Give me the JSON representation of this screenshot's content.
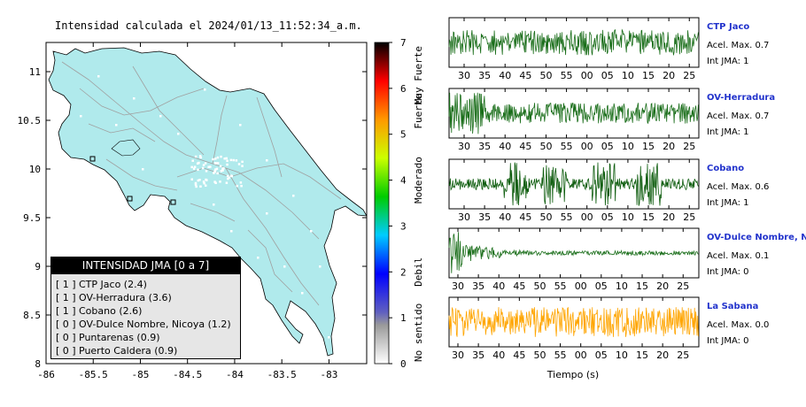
{
  "map": {
    "title": "Intensidad calculada el 2024/01/13_11:52:34_a.m.",
    "x_ticks": [
      "-86",
      "-85.5",
      "-85",
      "-84.5",
      "-84",
      "-83.5",
      "-83"
    ],
    "y_ticks": [
      "11",
      "10.5",
      "10",
      "9.5",
      "9",
      "8.5",
      "8"
    ],
    "land_color": "#b0eaec",
    "legend": {
      "title": "INTENSIDAD JMA [0 a 7]",
      "items": [
        {
          "jma": "[ 1 ]",
          "label": "CTP Jaco (2.4)"
        },
        {
          "jma": "[ 1 ]",
          "label": "OV-Herradura (3.6)"
        },
        {
          "jma": "[ 1 ]",
          "label": "Cobano (2.6)"
        },
        {
          "jma": "[ 0 ]",
          "label": "OV-Dulce Nombre, Nicoya (1.2)"
        },
        {
          "jma": "[ 0 ]",
          "label": "Puntarenas (0.9)"
        },
        {
          "jma": "[ 0 ]",
          "label": "Puerto Caldera (0.9)"
        }
      ]
    }
  },
  "colorbar": {
    "ticks": [
      "0",
      "1",
      "2",
      "3",
      "4",
      "5",
      "6",
      "7"
    ],
    "labels": [
      "No sentido",
      "Debil",
      "Moderado",
      "Fuerte",
      "Muy Fuerte"
    ]
  },
  "chart_data": [
    {
      "type": "line",
      "station": "CTP Jaco",
      "accel_label": "Acel. Max. 0.7",
      "int_label": "Int JMA: 1",
      "color": "#1a6e1a",
      "ticks": [
        "30",
        "35",
        "40",
        "45",
        "50",
        "55",
        "00",
        "05",
        "10",
        "15",
        "20",
        "25"
      ],
      "tick_start": 30
    },
    {
      "type": "line",
      "station": "OV-Herradura",
      "accel_label": "Acel. Max. 0.7",
      "int_label": "Int JMA: 1",
      "color": "#1a6e1a",
      "ticks": [
        "30",
        "35",
        "40",
        "45",
        "50",
        "55",
        "00",
        "05",
        "10",
        "15",
        "20",
        "25"
      ],
      "tick_start": 30
    },
    {
      "type": "line",
      "station": "Cobano",
      "accel_label": "Acel. Max. 0.6",
      "int_label": "Int JMA: 1",
      "color": "#0d5c0d",
      "ticks": [
        "30",
        "35",
        "40",
        "45",
        "50",
        "55",
        "00",
        "05",
        "10",
        "15",
        "20",
        "25"
      ],
      "tick_start": 30
    },
    {
      "type": "line",
      "station": "OV-Dulce Nombre, Nicoya",
      "accel_label": "Acel. Max. 0.1",
      "int_label": "Int JMA: 0",
      "color": "#1a6e1a",
      "ticks": [
        "30",
        "35",
        "40",
        "45",
        "50",
        "55",
        "00",
        "05",
        "10",
        "15",
        "20",
        "25"
      ],
      "tick_start": 29.5
    },
    {
      "type": "line",
      "station": "La Sabana",
      "accel_label": "Acel. Max. 0.0",
      "int_label": "Int JMA: 0",
      "color": "#ffa500",
      "ticks": [
        "30",
        "35",
        "40",
        "45",
        "50",
        "55",
        "00",
        "05",
        "10",
        "15",
        "20",
        "25"
      ],
      "tick_start": 29.5,
      "xlabel": "Tiempo (s)"
    }
  ]
}
